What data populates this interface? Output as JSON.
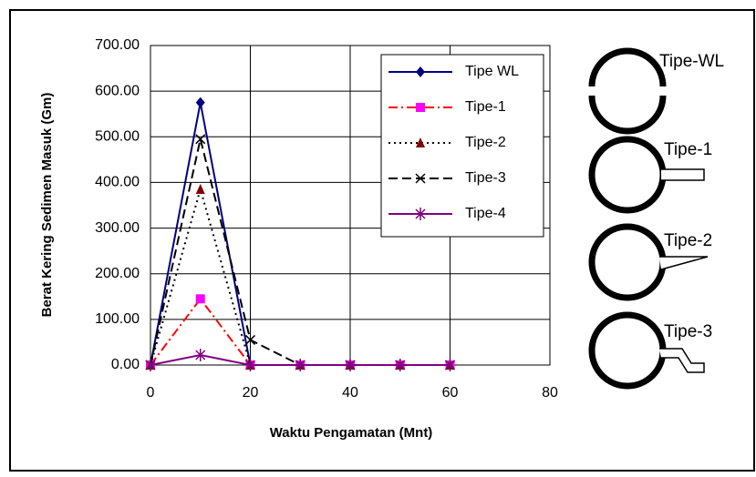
{
  "chart_data": {
    "type": "line",
    "y_label": "Berat Kering Sedimen Masuk (Gm)",
    "x_label": "Waktu Pengamatan (Mnt)",
    "x": [
      0,
      10,
      20,
      30,
      40,
      50,
      60
    ],
    "series": [
      {
        "name": "Tipe WL",
        "color": "#000080",
        "marker_color": "#000080",
        "marker": "diamond",
        "line_style": "solid",
        "values": [
          0,
          575,
          0,
          0,
          0,
          0,
          0
        ]
      },
      {
        "name": "Tipe-1",
        "color": "#ff0000",
        "marker_color": "#ff00ff",
        "marker": "square",
        "line_style": "dashdot",
        "values": [
          0,
          145,
          0,
          0,
          0,
          0,
          0
        ]
      },
      {
        "name": "Tipe-2",
        "color": "#000000",
        "marker_color": "#800000",
        "marker": "triangle",
        "line_style": "dotted",
        "values": [
          0,
          385,
          0,
          0,
          0,
          0,
          0
        ]
      },
      {
        "name": "Tipe-3",
        "color": "#000000",
        "marker_color": "#000000",
        "marker": "x",
        "line_style": "dashed",
        "values": [
          0,
          495,
          55,
          0,
          0,
          0,
          0
        ]
      },
      {
        "name": "Tipe-4",
        "color": "#800080",
        "marker_color": "#800080",
        "marker": "star",
        "line_style": "solid",
        "values": [
          0,
          22,
          0,
          0,
          0,
          0,
          0
        ]
      }
    ],
    "xlim": [
      0,
      80
    ],
    "xticks": [
      0,
      20,
      40,
      60,
      80
    ],
    "ylim": [
      0,
      700
    ],
    "yticks": [
      {
        "value": 0,
        "label": "0.00"
      },
      {
        "value": 100,
        "label": "100.00"
      },
      {
        "value": 200,
        "label": "200.00"
      },
      {
        "value": 300,
        "label": "300.00"
      },
      {
        "value": 400,
        "label": "400.00"
      },
      {
        "value": 500,
        "label": "500.00"
      },
      {
        "value": 600,
        "label": "600.00"
      },
      {
        "value": 700,
        "label": "700.00"
      }
    ],
    "grid": true,
    "legend": "upper right",
    "annotations": [
      "Tipe-WL",
      "Tipe-1",
      "Tipe-2",
      "Tipe-3"
    ]
  }
}
